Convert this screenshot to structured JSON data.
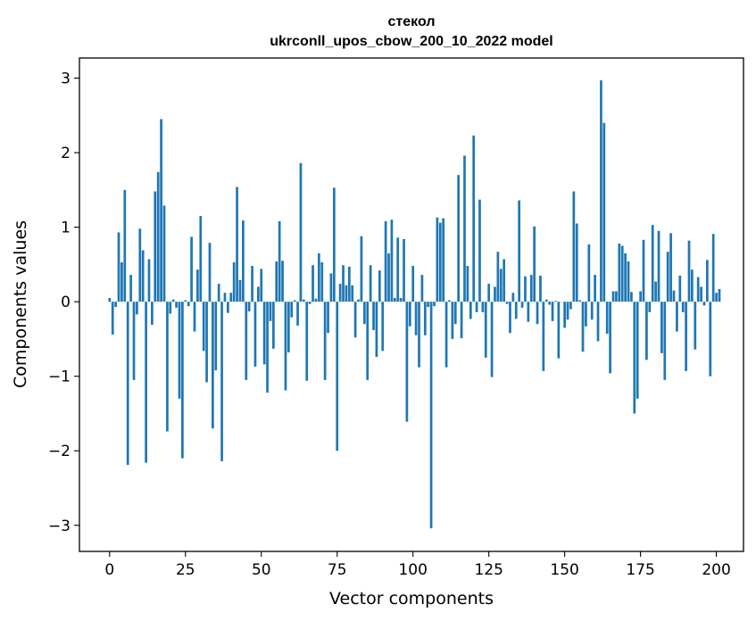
{
  "chart_data": {
    "type": "bar",
    "title": "стекол",
    "subtitle": "ukrconll_upos_cbow_200_10_2022 model",
    "xlabel": "Vector components",
    "ylabel": "Components values",
    "xlim": [
      -9.95,
      208.95
    ],
    "ylim": [
      -3.35,
      3.27
    ],
    "xticks": [
      0,
      25,
      50,
      75,
      100,
      125,
      150,
      175,
      200
    ],
    "yticks": [
      -3,
      -2,
      -1,
      0,
      1,
      2,
      3
    ],
    "xtick_labels": [
      "0",
      "25",
      "50",
      "75",
      "100",
      "125",
      "150",
      "175",
      "200"
    ],
    "ytick_labels": [
      "−3",
      "−2",
      "−1",
      "0",
      "1",
      "2",
      "3"
    ],
    "grid": false,
    "bar_color": "#1f77b4",
    "values": [
      0.05,
      -0.44,
      -0.07,
      0.93,
      0.53,
      1.5,
      -2.19,
      0.36,
      -1.05,
      -0.17,
      0.98,
      0.69,
      -2.16,
      0.57,
      -0.31,
      1.48,
      1.74,
      2.45,
      1.29,
      -1.74,
      -0.16,
      0.03,
      -0.08,
      -1.3,
      -2.1,
      0.02,
      -0.06,
      0.87,
      -0.4,
      0.43,
      1.15,
      -0.66,
      -1.08,
      0.79,
      -1.7,
      -0.92,
      0.24,
      -2.14,
      0.12,
      -0.15,
      0.12,
      0.53,
      1.54,
      0.29,
      1.09,
      -1.05,
      -0.13,
      0.48,
      -0.87,
      0.2,
      0.44,
      -0.84,
      -1.22,
      -0.26,
      -0.63,
      0.54,
      1.08,
      0.55,
      -1.19,
      -0.68,
      -0.21,
      0.02,
      -0.32,
      1.86,
      0.03,
      -1.06,
      -0.03,
      0.49,
      0.04,
      0.65,
      0.53,
      -1.05,
      -0.42,
      0.38,
      1.53,
      -2.0,
      0.24,
      0.49,
      0.22,
      0.47,
      0.22,
      -0.48,
      0.03,
      0.88,
      -0.3,
      -1.05,
      0.49,
      -0.38,
      -0.74,
      0.42,
      -0.66,
      1.08,
      0.65,
      1.1,
      0.05,
      0.86,
      0.05,
      0.84,
      -1.61,
      -0.33,
      0.48,
      -0.45,
      -0.88,
      0.36,
      -0.45,
      -0.07,
      -3.04,
      -0.06,
      1.13,
      1.06,
      1.12,
      -0.88,
      0.02,
      -0.5,
      -0.3,
      1.7,
      -0.49,
      1.96,
      0.48,
      -0.23,
      2.23,
      -0.14,
      1.37,
      -0.14,
      -0.75,
      0.24,
      -1.01,
      0.2,
      0.67,
      0.44,
      0.57,
      -0.03,
      -0.42,
      0.12,
      -0.23,
      1.36,
      -0.08,
      0.34,
      -0.27,
      0.36,
      1.01,
      -0.3,
      0.35,
      -0.93,
      0.03,
      -0.04,
      -0.26,
      0.01,
      -0.76,
      0.0,
      -0.35,
      -0.24,
      -0.1,
      1.48,
      1.05,
      0.02,
      -0.67,
      -0.33,
      0.77,
      -0.24,
      0.36,
      -0.53,
      2.97,
      2.4,
      -0.43,
      -0.96,
      0.14,
      0.14,
      0.78,
      0.75,
      0.65,
      0.54,
      0.13,
      -1.5,
      -1.3,
      0.14,
      0.83,
      -0.78,
      -0.14,
      1.03,
      0.27,
      0.95,
      -0.69,
      -1.05,
      0.67,
      0.92,
      0.15,
      -0.4,
      0.35,
      -0.14,
      -0.93,
      0.82,
      0.43,
      -0.64,
      0.33,
      0.2,
      -0.05,
      0.56,
      -1.0,
      0.91,
      0.12,
      0.17
    ]
  }
}
